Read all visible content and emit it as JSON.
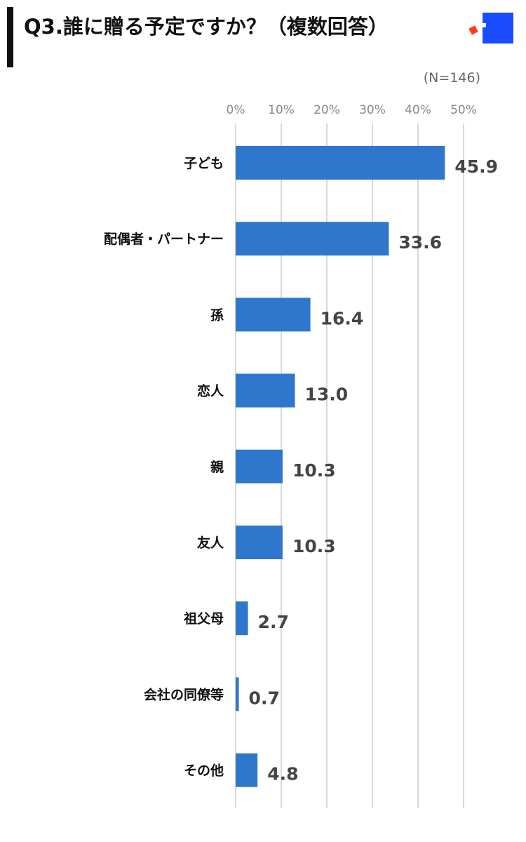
{
  "header": {
    "title": "Q3.誰に贈る予定ですか？（複数回答）"
  },
  "chart_data": {
    "type": "bar",
    "orientation": "horizontal",
    "title": "Q3.誰に贈る予定ですか？（複数回答）",
    "note": "(N=146)",
    "categories": [
      "子ども",
      "配偶者・パートナー",
      "孫",
      "恋人",
      "親",
      "友人",
      "祖父母",
      "会社の同僚等",
      "その他"
    ],
    "values": [
      45.9,
      33.6,
      16.4,
      13.0,
      10.3,
      10.3,
      2.7,
      0.7,
      4.8
    ],
    "value_labels": [
      "45.9",
      "33.6",
      "16.4",
      "13.0",
      "10.3",
      "10.3",
      "2.7",
      "0.7",
      "4.8"
    ],
    "xticks": [
      0,
      10,
      20,
      30,
      40,
      50
    ],
    "xtick_labels": [
      "0%",
      "10%",
      "20%",
      "30%",
      "40%",
      "50%"
    ],
    "xlim": [
      0,
      50
    ],
    "xlabel": "",
    "ylabel": "",
    "grid": true,
    "colors": {
      "bar": "#2f77cc",
      "grid": "#d9d9d9",
      "logo_blue": "#1a4cff",
      "logo_red": "#ff3b1f"
    }
  }
}
